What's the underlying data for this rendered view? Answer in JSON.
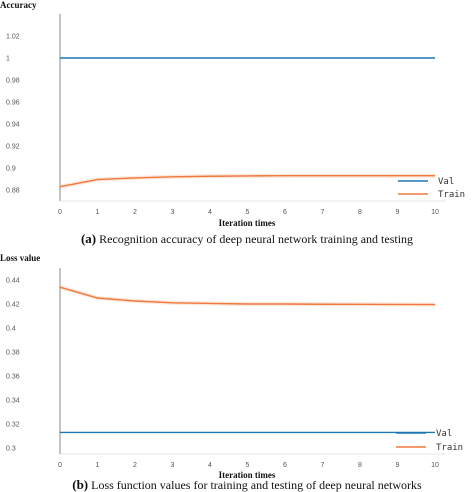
{
  "chart_data": [
    {
      "type": "line",
      "ylabel": "Accuracy",
      "xlabel": "Iteration times",
      "caption_label": "(a)",
      "caption_text": " Recognition accuracy of deep neural network training and testing",
      "x": [
        0,
        1,
        2,
        3,
        4,
        5,
        6,
        7,
        8,
        9,
        10
      ],
      "ylim": [
        0.87,
        1.04
      ],
      "yticks": [
        "1.02",
        "1",
        "0.98",
        "0.96",
        "0.94",
        "0.92",
        "0.9",
        "0.88"
      ],
      "ytick_values": [
        1.02,
        1.0,
        0.98,
        0.96,
        0.94,
        0.92,
        0.9,
        0.88
      ],
      "series": [
        {
          "name": "Val",
          "color": "#1f77b4",
          "values": [
            1.0,
            1.0,
            1.0,
            1.0,
            1.0,
            1.0,
            1.0,
            1.0,
            1.0,
            1.0,
            1.0
          ]
        },
        {
          "name": "Train",
          "color": "#f0783c",
          "values": [
            0.883,
            0.8895,
            0.891,
            0.892,
            0.8925,
            0.8928,
            0.893,
            0.893,
            0.893,
            0.893,
            0.893
          ]
        }
      ],
      "legend": "bottom-right",
      "grid": false
    },
    {
      "type": "line",
      "ylabel": "Loss value",
      "xlabel": "Iteration times",
      "caption_label": "(b)",
      "caption_text": " Loss function values for training and testing of deep neural networks",
      "x": [
        0,
        1,
        2,
        3,
        4,
        5,
        6,
        7,
        8,
        9,
        10
      ],
      "ylim": [
        0.295,
        0.45
      ],
      "yticks": [
        "0.44",
        "0.42",
        "0.4",
        "0.38",
        "0.36",
        "0.34",
        "0.32",
        "0.3"
      ],
      "ytick_values": [
        0.44,
        0.42,
        0.4,
        0.38,
        0.36,
        0.34,
        0.32,
        0.3
      ],
      "series": [
        {
          "name": "Val",
          "color": "#1f77b4",
          "values": [
            0.313,
            0.313,
            0.313,
            0.313,
            0.313,
            0.313,
            0.313,
            0.313,
            0.313,
            0.313,
            0.313
          ]
        },
        {
          "name": "Train",
          "color": "#f0783c",
          "values": [
            0.434,
            0.425,
            0.4225,
            0.421,
            0.4205,
            0.42,
            0.42,
            0.4198,
            0.4197,
            0.4196,
            0.4195
          ]
        }
      ],
      "legend": "bottom-right",
      "grid": false
    }
  ]
}
